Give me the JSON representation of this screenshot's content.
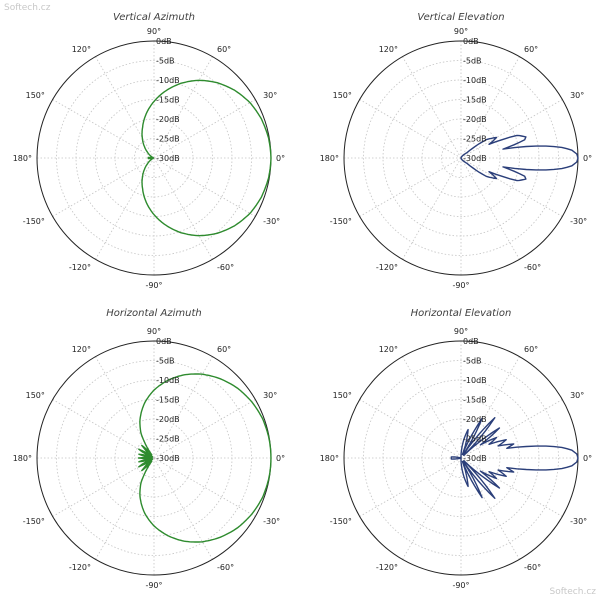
{
  "watermark": {
    "top": "Softech.cz",
    "bottom": "Softech.cz"
  },
  "chart_data": [
    {
      "type": "polar",
      "title": "Vertical Azimuth",
      "rlim": [
        -30,
        0
      ],
      "r_ticks": [
        "-30dB",
        "-25dB",
        "-20dB",
        "-15dB",
        "-10dB",
        "-5dB",
        "0dB"
      ],
      "angle_ticks": [
        "0°",
        "30°",
        "60°",
        "90°",
        "120°",
        "150°",
        "180°",
        "-150°",
        "-120°",
        "-90°",
        "-60°",
        "-30°"
      ],
      "color": "#2e8b2e",
      "pattern": {
        "angle_deg": [
          0,
          10,
          20,
          30,
          40,
          50,
          60,
          70,
          80,
          90,
          100,
          110,
          120,
          130,
          140,
          150,
          160,
          170,
          175,
          180
        ],
        "gain_db": [
          0,
          -0.2,
          -0.7,
          -1.6,
          -3,
          -4.8,
          -7,
          -9.6,
          -12.5,
          -15.5,
          -18.5,
          -21.5,
          -24,
          -26.2,
          -28,
          -29.2,
          -29.8,
          -29.5,
          -28.5,
          -29.8
        ]
      }
    },
    {
      "type": "polar",
      "title": "Vertical Elevation",
      "rlim": [
        -30,
        0
      ],
      "r_ticks": [
        "-30dB",
        "-25dB",
        "-20dB",
        "-15dB",
        "-10dB",
        "-5dB",
        "0dB"
      ],
      "angle_ticks": [
        "0°",
        "30°",
        "60°",
        "90°",
        "120°",
        "150°",
        "180°",
        "-150°",
        "-120°",
        "-90°",
        "-60°",
        "-30°"
      ],
      "color": "#2b3f7a",
      "pattern": {
        "angle_deg": [
          0,
          2,
          4,
          6,
          8,
          10,
          12,
          14,
          16,
          18,
          22,
          26,
          30,
          36,
          42,
          50,
          60,
          75,
          90,
          110,
          130,
          150,
          170,
          180
        ],
        "gain_db": [
          0,
          -0.3,
          -1.5,
          -4,
          -8,
          -13,
          -19,
          -16,
          -13,
          -12.5,
          -14.5,
          -22,
          -19.5,
          -22,
          -28,
          -29,
          -29.5,
          -30,
          -30,
          -30,
          -30,
          -30,
          -30,
          -30
        ]
      }
    },
    {
      "type": "polar",
      "title": "Horizontal Azimuth",
      "rlim": [
        -30,
        0
      ],
      "r_ticks": [
        "-30dB",
        "-25dB",
        "-20dB",
        "-15dB",
        "-10dB",
        "-5dB",
        "0dB"
      ],
      "angle_ticks": [
        "0°",
        "30°",
        "60°",
        "90°",
        "120°",
        "150°",
        "180°",
        "-150°",
        "-120°",
        "-90°",
        "-60°",
        "-30°"
      ],
      "color": "#2e8b2e",
      "pattern": {
        "angle_deg": [
          0,
          10,
          20,
          30,
          40,
          50,
          60,
          70,
          80,
          90,
          100,
          110,
          118,
          126,
          134,
          142,
          150,
          158,
          166,
          174,
          180
        ],
        "gain_db": [
          0,
          -0.1,
          -0.4,
          -1.1,
          -2.1,
          -3.5,
          -5.2,
          -7.3,
          -9.8,
          -12.6,
          -15.8,
          -19.5,
          -23,
          -29,
          -25.5,
          -29.5,
          -25.5,
          -29.5,
          -26,
          -29.5,
          -26
        ]
      }
    },
    {
      "type": "polar",
      "title": "Horizontal Elevation",
      "rlim": [
        -30,
        0
      ],
      "r_ticks": [
        "-30dB",
        "-25dB",
        "-20dB",
        "-15dB",
        "-10dB",
        "-5dB",
        "0dB"
      ],
      "angle_ticks": [
        "0°",
        "30°",
        "60°",
        "90°",
        "120°",
        "150°",
        "180°",
        "-150°",
        "-120°",
        "-90°",
        "-60°",
        "-30°"
      ],
      "color": "#2b3f7a",
      "pattern": {
        "angle_deg": [
          0,
          2,
          4,
          6,
          8,
          10,
          12,
          15,
          18,
          22,
          26,
          30,
          34,
          38,
          44,
          50,
          56,
          62,
          68,
          76,
          90,
          110,
          130,
          150,
          165,
          174,
          180
        ],
        "gain_db": [
          0,
          -0.3,
          -1.5,
          -4,
          -8,
          -13,
          -18,
          -16,
          -20,
          -17.5,
          -22,
          -19.5,
          -24,
          -17.5,
          -29,
          -16.5,
          -29,
          -18.5,
          -29,
          -22.5,
          -30,
          -30,
          -30,
          -30,
          -30,
          -27.5,
          -27.5
        ]
      }
    }
  ]
}
